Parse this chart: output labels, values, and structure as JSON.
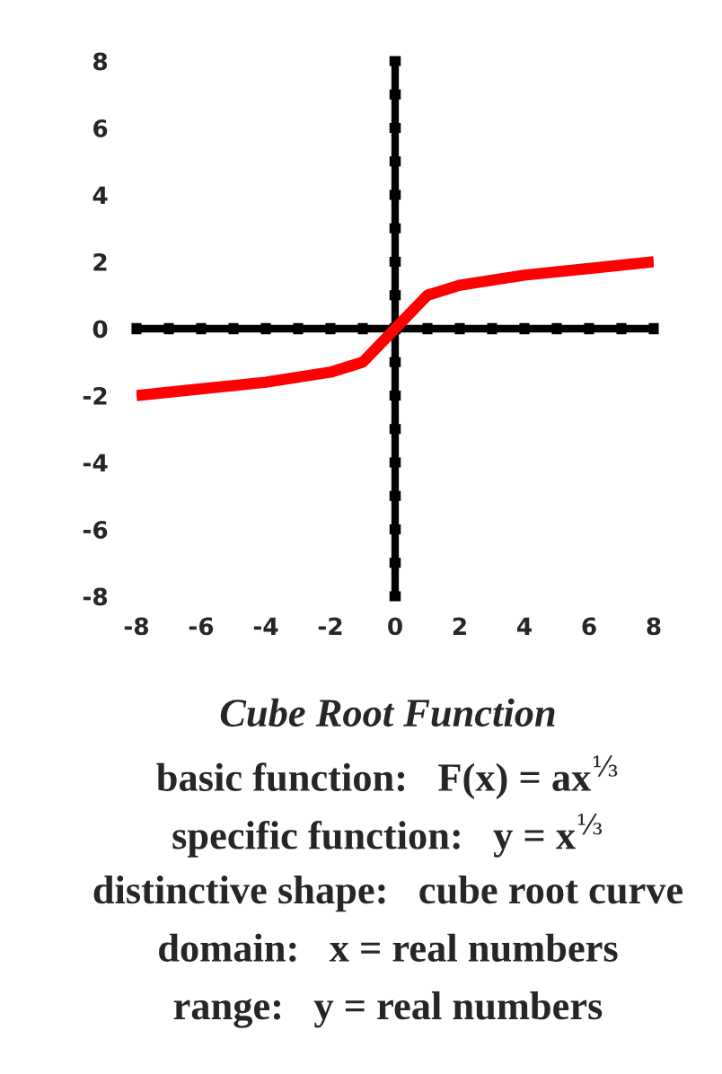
{
  "chart_data": {
    "type": "line",
    "title": "Cube Root Function",
    "x": [
      -8,
      -6,
      -4,
      -2,
      -1,
      0,
      1,
      2,
      4,
      6,
      8
    ],
    "series": [
      {
        "color": "#ff0000",
        "values": [
          -2,
          -1.8,
          -1.6,
          -1.3,
          -1,
          0,
          1,
          1.3,
          1.6,
          1.8,
          2
        ]
      }
    ],
    "xlim": [
      -8,
      8
    ],
    "ylim": [
      -8,
      8
    ],
    "xticks": [
      -8,
      {
        "value": -7,
        "label": null
      },
      -6,
      {
        "value": -5,
        "label": null
      },
      -4,
      {
        "value": -3,
        "label": null
      },
      -2,
      {
        "value": -1,
        "label": null
      },
      0,
      {
        "value": 1,
        "label": null
      },
      2,
      {
        "value": 3,
        "label": null
      },
      4,
      {
        "value": 5,
        "label": null
      },
      6,
      {
        "value": 7,
        "label": null
      },
      8
    ],
    "yticks": [
      -8,
      {
        "value": -7,
        "label": null
      },
      -6,
      {
        "value": -5,
        "label": null
      },
      -4,
      {
        "value": -3,
        "label": null
      },
      -2,
      {
        "value": -1,
        "label": null
      },
      0,
      {
        "value": 1,
        "label": null
      },
      2,
      {
        "value": 3,
        "label": null
      },
      4,
      {
        "value": 5,
        "label": null
      },
      6,
      {
        "value": 7,
        "label": null
      },
      8
    ],
    "line_style": "solid",
    "annotations": [
      "basic function:   F(x) = ax$^{⅓}$",
      "specific function:   y = x$^{⅓}$",
      "distinctive shape:   cube root curve",
      "domain:   x = real numbers",
      "range:   y = real numbers"
    ]
  }
}
